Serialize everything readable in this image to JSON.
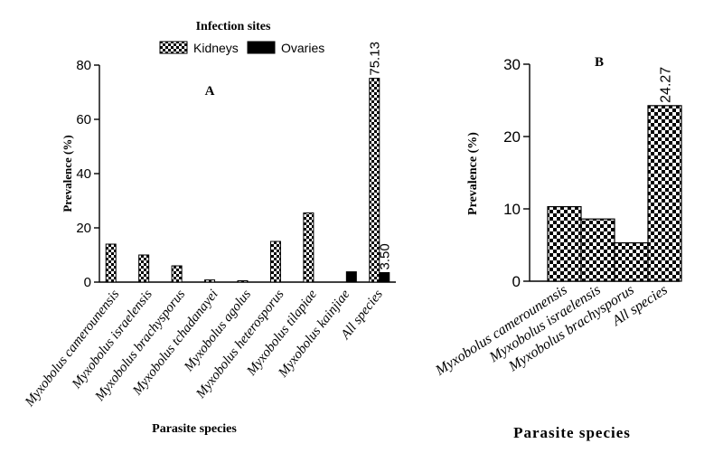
{
  "legend": {
    "title": "Infection sites",
    "items": [
      {
        "label": "Kidneys",
        "pattern": "checker"
      },
      {
        "label": "Ovaries",
        "pattern": "solid"
      }
    ]
  },
  "chart_data": [
    {
      "type": "bar",
      "panel_label": "A",
      "categories": [
        "Myxobolus camerounensis",
        "Myxobolus israelensis",
        "Myxobolus brachysporus",
        "Myxobolus tchadanayei",
        "Myxobolus agolus",
        "Myxobolus heterosporus",
        "Myxobolus tilapiae",
        "Myxobolus kainjiae",
        "All species"
      ],
      "series": [
        {
          "name": "Kidneys",
          "values": [
            14,
            10,
            6,
            0.8,
            0.5,
            15,
            25.5,
            0,
            75.13
          ]
        },
        {
          "name": "Ovaries",
          "values": [
            0,
            0,
            0,
            0,
            0,
            0,
            0,
            3.8,
            3.5
          ]
        }
      ],
      "data_labels": [
        {
          "series": "Kidneys",
          "category": "All species",
          "text": "75.13"
        },
        {
          "series": "Ovaries",
          "category": "All species",
          "text": "3.50"
        }
      ],
      "xlabel": "Parasite species",
      "ylabel": "Prevalence (%)",
      "ylim": [
        0,
        80
      ],
      "yticks": [
        0,
        20,
        40,
        60,
        80
      ],
      "grid": false,
      "legend_position": "top"
    },
    {
      "type": "bar",
      "panel_label": "B",
      "categories": [
        "Myxobolus camerounensis",
        "Myxobolus israelensis",
        "Myxobolus brachysporus",
        "All species"
      ],
      "values": [
        10.3,
        8.6,
        5.3,
        24.27
      ],
      "data_labels": [
        {
          "category": "All species",
          "text": "24.27"
        }
      ],
      "xlabel": "Parasite species",
      "ylabel": "Prevalence (%)",
      "ylim": [
        0,
        30
      ],
      "yticks": [
        0,
        10,
        20,
        30
      ],
      "grid": false
    }
  ]
}
